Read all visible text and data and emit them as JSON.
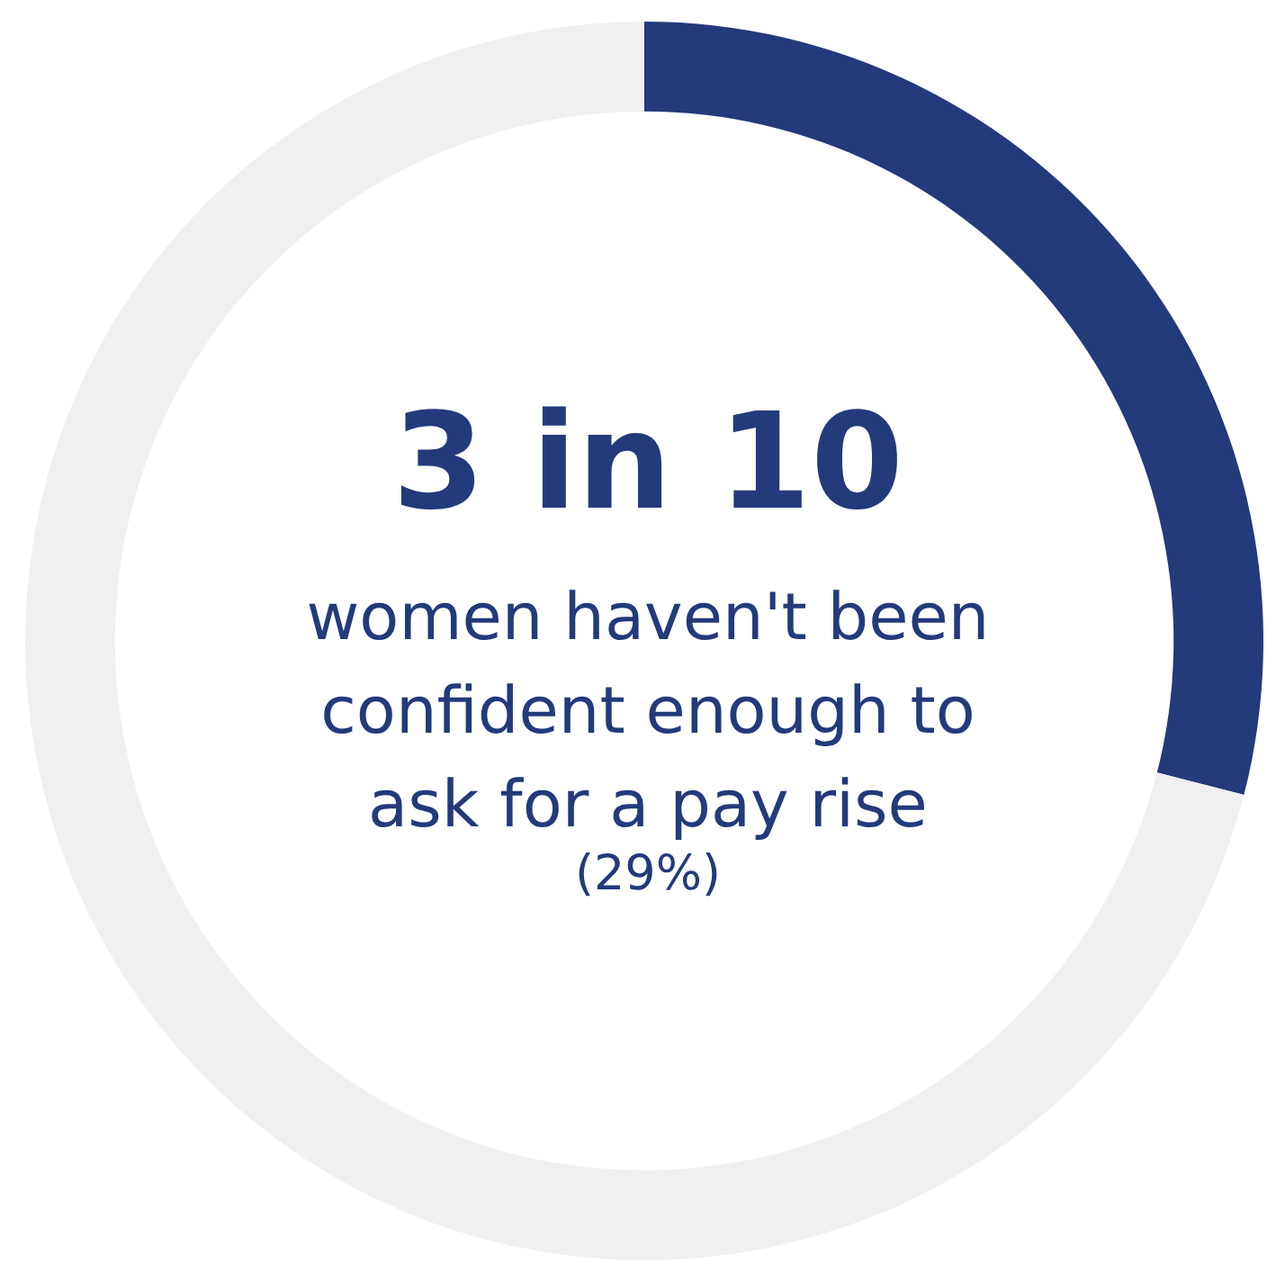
{
  "chart_data": {
    "type": "donut",
    "title": "3 in 10",
    "subtitle": "women haven't been confident enough to ask for a pay rise",
    "categories": [
      null,
      null
    ],
    "values": [
      29,
      71
    ],
    "colors": [
      "#233a7b",
      "#f0f0f0"
    ],
    "annotations": [
      "(29%)"
    ]
  }
}
